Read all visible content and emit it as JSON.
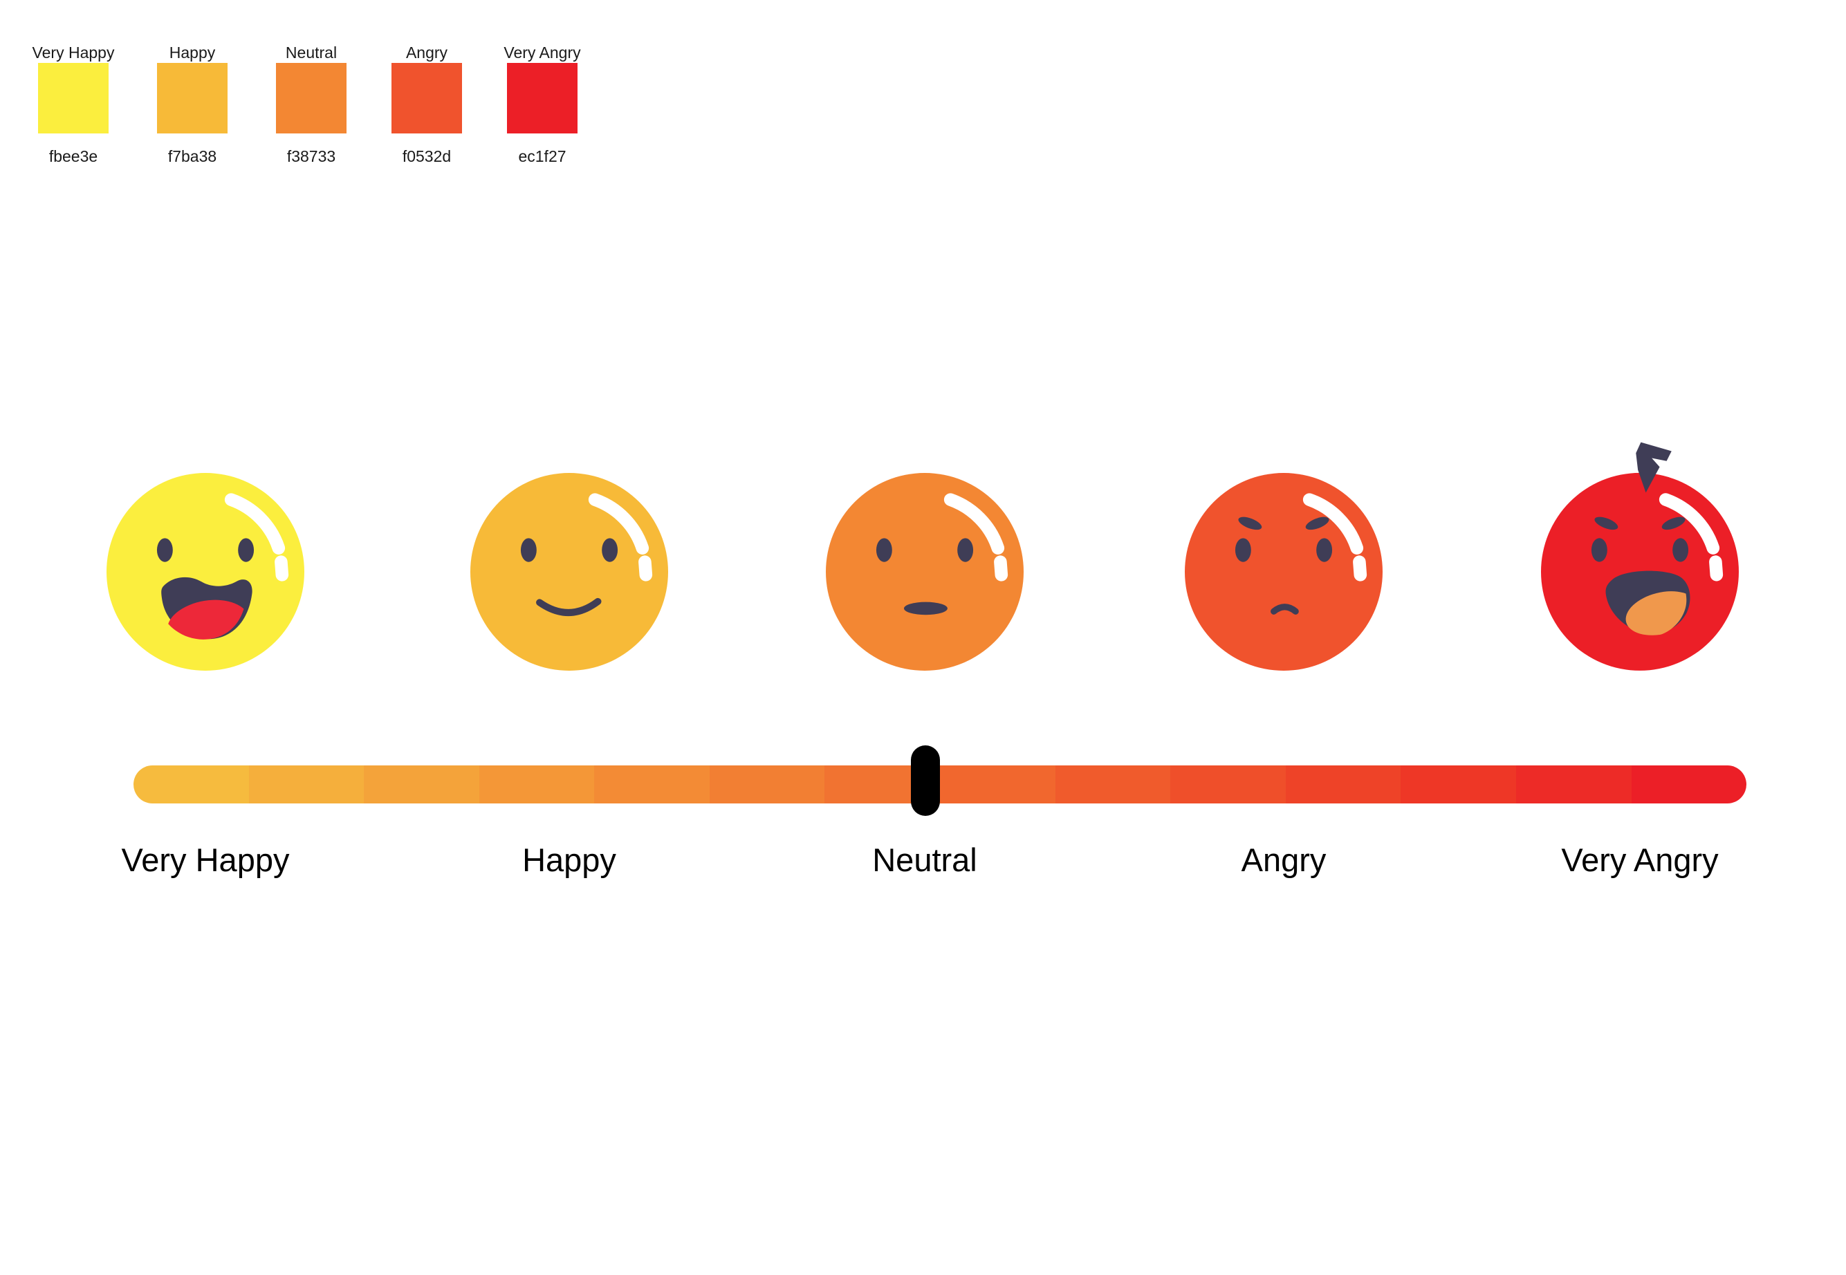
{
  "palette": {
    "items": [
      {
        "label": "Very Happy",
        "hex": "fbee3e",
        "color": "#fbee3e"
      },
      {
        "label": "Happy",
        "hex": "f7ba38",
        "color": "#f7ba38"
      },
      {
        "label": "Neutral",
        "hex": "f38733",
        "color": "#f38733"
      },
      {
        "label": "Angry",
        "hex": "f0532d",
        "color": "#f0532d"
      },
      {
        "label": "Very Angry",
        "hex": "ec1f27",
        "color": "#ec1f27"
      }
    ]
  },
  "faces": [
    {
      "name": "very-happy",
      "color": "#fbee3e"
    },
    {
      "name": "happy",
      "color": "#f7ba38"
    },
    {
      "name": "neutral",
      "color": "#f38733"
    },
    {
      "name": "angry",
      "color": "#f0532d"
    },
    {
      "name": "very-angry",
      "color": "#ec1f27"
    }
  ],
  "scale": {
    "labels": [
      "Very Happy",
      "Happy",
      "Neutral",
      "Angry",
      "Very Angry"
    ]
  },
  "slider": {
    "segments": [
      "#f6bb3e",
      "#f5af3c",
      "#f4a33a",
      "#f49737",
      "#f38b35",
      "#f27f33",
      "#f17331",
      "#f1672e",
      "#f05b2c",
      "#ef4f2a",
      "#ee4328",
      "#ee3726",
      "#ed2b27",
      "#ec1f27"
    ],
    "handle_color": "#000000",
    "handle_position_label": "Neutral"
  },
  "colors": {
    "feature": "#3f3d56",
    "shine": "#ffffff",
    "tongue_happy": "#ed2839",
    "tongue_angry": "#f0984c",
    "background": "#ffffff"
  }
}
